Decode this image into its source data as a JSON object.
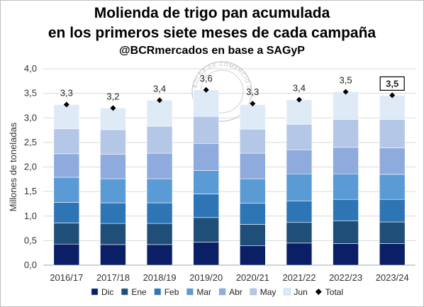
{
  "header": {
    "title_line1": "Molienda de trigo pan acumulada",
    "title_line2": "en los primeros siete meses de cada campaña",
    "subtitle": "@BCRmercados en base a SAGyP"
  },
  "watermark": {
    "text": "BOLSA DE COMERCIO DE ROSARIO"
  },
  "chart_data": {
    "type": "bar",
    "stacked": true,
    "categories": [
      "2016/17",
      "2017/18",
      "2018/19",
      "2019/20",
      "2020/21",
      "2021/22",
      "2022/23",
      "2023/24"
    ],
    "series": [
      {
        "name": "Dic",
        "color": "#0b1f66",
        "values": [
          0.43,
          0.42,
          0.42,
          0.47,
          0.4,
          0.45,
          0.44,
          0.44
        ]
      },
      {
        "name": "Ene",
        "color": "#1f4e79",
        "values": [
          0.43,
          0.43,
          0.43,
          0.5,
          0.43,
          0.42,
          0.46,
          0.44
        ]
      },
      {
        "name": "Feb",
        "color": "#2e75b6",
        "values": [
          0.42,
          0.42,
          0.42,
          0.48,
          0.43,
          0.44,
          0.44,
          0.46
        ]
      },
      {
        "name": "Mar",
        "color": "#5b9bd5",
        "values": [
          0.51,
          0.49,
          0.49,
          0.48,
          0.5,
          0.55,
          0.52,
          0.51
        ]
      },
      {
        "name": "Abr",
        "color": "#8faadc",
        "values": [
          0.48,
          0.5,
          0.52,
          0.55,
          0.52,
          0.49,
          0.54,
          0.54
        ]
      },
      {
        "name": "May",
        "color": "#b4c7e7",
        "values": [
          0.51,
          0.5,
          0.55,
          0.55,
          0.49,
          0.52,
          0.57,
          0.58
        ]
      },
      {
        "name": "Jun",
        "color": "#deebf7",
        "values": [
          0.49,
          0.44,
          0.53,
          0.54,
          0.5,
          0.5,
          0.56,
          0.49
        ]
      }
    ],
    "total": {
      "name": "Total",
      "values": [
        3.27,
        3.2,
        3.36,
        3.57,
        3.29,
        3.37,
        3.53,
        3.46
      ],
      "labels": [
        "3,3",
        "3,2",
        "3,4",
        "3,6",
        "3,3",
        "3,4",
        "3,5",
        "3,5"
      ],
      "highlighted_index": 7
    },
    "ylabel": "Millones de toneladas",
    "ylim": [
      0,
      4.0
    ],
    "yticks": [
      "0,0",
      "0,5",
      "1,0",
      "1,5",
      "2,0",
      "2,5",
      "3,0",
      "3,5",
      "4,0"
    ],
    "grid": true,
    "legend_position": "bottom"
  }
}
